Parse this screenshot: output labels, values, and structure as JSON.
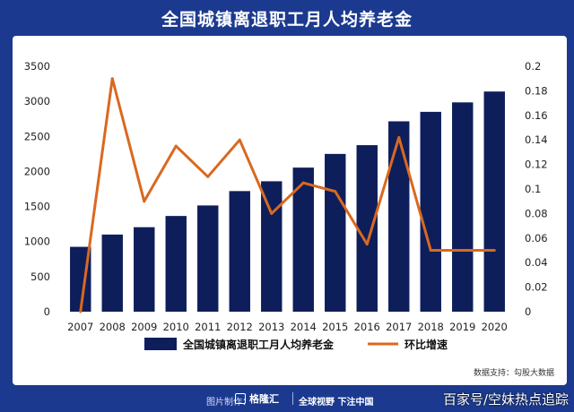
{
  "title": "全国城镇离退职工月人均养老金",
  "source_note": "数据支持：勾股大数据",
  "footer": {
    "made_by_label": "图片制作：",
    "brand": "格隆汇",
    "slogan": "全球视野 下注中国",
    "watermark": "百家号/空妹热点追踪"
  },
  "colors": {
    "bar": "#0e1e5b",
    "line": "#d9691f",
    "header_bg": "#1b3a8f"
  },
  "chart_data": {
    "type": "bar",
    "categories": [
      "2007",
      "2008",
      "2009",
      "2010",
      "2011",
      "2012",
      "2013",
      "2014",
      "2015",
      "2016",
      "2017",
      "2018",
      "2019",
      "2020"
    ],
    "series": [
      {
        "name": "全国城镇离退职工月人均养老金",
        "type": "bar",
        "axis": "left",
        "values": [
          925,
          1100,
          1205,
          1365,
          1515,
          1720,
          1860,
          2055,
          2250,
          2375,
          2715,
          2850,
          2985,
          3140
        ]
      },
      {
        "name": "环比增速",
        "type": "line",
        "axis": "right",
        "values": [
          0,
          0.19,
          0.09,
          0.135,
          0.11,
          0.14,
          0.08,
          0.105,
          0.098,
          0.055,
          0.142,
          0.05,
          0.05,
          0.05
        ]
      }
    ],
    "y_left": {
      "min": 0,
      "max": 3500,
      "ticks": [
        "0",
        "500",
        "1000",
        "1500",
        "2000",
        "2500",
        "3000",
        "3500"
      ]
    },
    "y_right": {
      "min": 0,
      "max": 0.2,
      "ticks": [
        "0",
        "0.02",
        "0.04",
        "0.06",
        "0.08",
        "0.1",
        "0.12",
        "0.14",
        "0.16",
        "0.18",
        "0.2"
      ]
    },
    "grid": false,
    "legend_position": "bottom"
  }
}
